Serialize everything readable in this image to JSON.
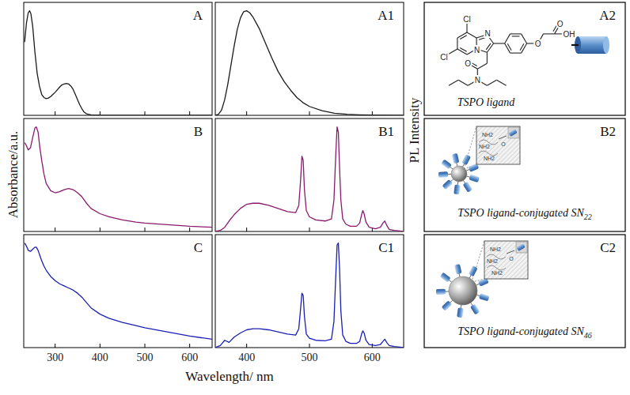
{
  "chart_data": [
    {
      "type": "line",
      "title": "A",
      "x": [
        232,
        236,
        240,
        243,
        246,
        250,
        255,
        260,
        265,
        270,
        275,
        280,
        285,
        290,
        295,
        300,
        305,
        310,
        315,
        320,
        325,
        330,
        335,
        340,
        345,
        350,
        355,
        360,
        365,
        370,
        380,
        400,
        450,
        500,
        550,
        600,
        650
      ],
      "series": [
        {
          "color": "#1a1a1a",
          "values": [
            0.7,
            0.88,
            0.98,
            1.0,
            0.97,
            0.85,
            0.6,
            0.4,
            0.28,
            0.2,
            0.17,
            0.16,
            0.165,
            0.18,
            0.2,
            0.22,
            0.245,
            0.27,
            0.29,
            0.3,
            0.305,
            0.3,
            0.28,
            0.25,
            0.2,
            0.15,
            0.1,
            0.06,
            0.03,
            0.015,
            0.005,
            0.002,
            0,
            0,
            0,
            0,
            0
          ]
        }
      ],
      "xlim": [
        230,
        650
      ],
      "ylim": [
        0,
        1.08
      ],
      "xticks": [
        300,
        400,
        500,
        600
      ],
      "tick_labels": false
    },
    {
      "type": "line",
      "title": "A1",
      "x": [
        350,
        355,
        360,
        365,
        370,
        375,
        380,
        385,
        390,
        395,
        400,
        405,
        410,
        420,
        430,
        440,
        450,
        460,
        470,
        480,
        490,
        500,
        520,
        540,
        560,
        580,
        600,
        650
      ],
      "series": [
        {
          "color": "#1a1a1a",
          "values": [
            0,
            0.01,
            0.05,
            0.15,
            0.3,
            0.48,
            0.66,
            0.82,
            0.93,
            0.99,
            1.0,
            0.98,
            0.94,
            0.83,
            0.69,
            0.55,
            0.42,
            0.32,
            0.24,
            0.17,
            0.12,
            0.085,
            0.045,
            0.02,
            0.01,
            0.005,
            0.002,
            0
          ]
        }
      ],
      "xlim": [
        350,
        650
      ],
      "ylim": [
        0,
        1.08
      ],
      "xticks": [
        400,
        500,
        600
      ],
      "tick_labels": false
    },
    {
      "type": "line",
      "title": "B",
      "x": [
        232,
        236,
        240,
        245,
        250,
        255,
        258,
        262,
        266,
        270,
        275,
        280,
        290,
        300,
        310,
        320,
        330,
        340,
        350,
        360,
        370,
        380,
        400,
        420,
        450,
        480,
        500,
        550,
        600,
        650
      ],
      "series": [
        {
          "color": "#8b1a6e",
          "values": [
            0.85,
            0.82,
            0.78,
            0.8,
            0.9,
            0.99,
            1.0,
            0.95,
            0.8,
            0.68,
            0.55,
            0.46,
            0.39,
            0.37,
            0.38,
            0.4,
            0.41,
            0.4,
            0.37,
            0.33,
            0.27,
            0.22,
            0.17,
            0.14,
            0.11,
            0.09,
            0.08,
            0.065,
            0.05,
            0.04
          ]
        }
      ],
      "xlim": [
        230,
        650
      ],
      "ylim": [
        0,
        1.08
      ],
      "xticks": [
        300,
        400,
        500,
        600
      ],
      "tick_labels": false
    },
    {
      "type": "line",
      "title": "B1",
      "x": [
        350,
        358,
        365,
        372,
        380,
        390,
        400,
        410,
        420,
        435,
        450,
        465,
        478,
        483,
        486,
        488,
        490,
        492,
        495,
        500,
        510,
        525,
        535,
        539,
        542,
        544,
        546,
        548,
        550,
        553,
        558,
        565,
        575,
        580,
        583,
        585,
        587,
        590,
        595,
        605,
        613,
        617,
        620,
        623,
        627,
        635,
        650
      ],
      "series": [
        {
          "color": "#8b1a6e",
          "values": [
            0,
            0.01,
            0.04,
            0.1,
            0.16,
            0.22,
            0.26,
            0.27,
            0.27,
            0.25,
            0.22,
            0.19,
            0.18,
            0.25,
            0.5,
            0.72,
            0.68,
            0.4,
            0.2,
            0.14,
            0.11,
            0.1,
            0.12,
            0.3,
            0.75,
            1.0,
            0.95,
            0.6,
            0.3,
            0.12,
            0.07,
            0.05,
            0.05,
            0.08,
            0.16,
            0.2,
            0.17,
            0.09,
            0.04,
            0.025,
            0.04,
            0.08,
            0.1,
            0.06,
            0.02,
            0.01,
            0
          ]
        }
      ],
      "xlim": [
        350,
        650
      ],
      "ylim": [
        0,
        1.08
      ],
      "xticks": [
        400,
        500,
        600
      ],
      "tick_labels": false
    },
    {
      "type": "line",
      "title": "C",
      "x": [
        232,
        236,
        240,
        245,
        250,
        255,
        258,
        262,
        266,
        270,
        275,
        280,
        290,
        300,
        310,
        320,
        330,
        340,
        350,
        360,
        370,
        380,
        400,
        420,
        450,
        480,
        500,
        550,
        600,
        650
      ],
      "series": [
        {
          "color": "#1a1fb5",
          "values": [
            1.0,
            0.97,
            0.93,
            0.92,
            0.94,
            0.96,
            0.96,
            0.93,
            0.88,
            0.83,
            0.78,
            0.74,
            0.68,
            0.64,
            0.61,
            0.59,
            0.57,
            0.55,
            0.52,
            0.48,
            0.43,
            0.38,
            0.32,
            0.28,
            0.24,
            0.21,
            0.19,
            0.15,
            0.11,
            0.08
          ]
        }
      ],
      "xlim": [
        230,
        650
      ],
      "ylim": [
        0,
        1.08
      ],
      "xticks": [
        300,
        400,
        500,
        600
      ],
      "tick_labels": "x"
    },
    {
      "type": "line",
      "title": "C1",
      "x": [
        350,
        358,
        365,
        372,
        380,
        390,
        400,
        410,
        420,
        435,
        450,
        465,
        478,
        483,
        486,
        488,
        490,
        492,
        495,
        500,
        510,
        525,
        535,
        539,
        542,
        544,
        546,
        548,
        550,
        553,
        558,
        565,
        575,
        580,
        583,
        585,
        587,
        590,
        595,
        605,
        613,
        617,
        620,
        623,
        627,
        635,
        650
      ],
      "series": [
        {
          "color": "#1a1fb5",
          "values": [
            0,
            0.02,
            0.07,
            0.05,
            0.1,
            0.14,
            0.17,
            0.18,
            0.18,
            0.17,
            0.15,
            0.13,
            0.12,
            0.18,
            0.38,
            0.52,
            0.5,
            0.3,
            0.13,
            0.09,
            0.07,
            0.065,
            0.08,
            0.25,
            0.7,
            0.98,
            1.0,
            0.75,
            0.35,
            0.12,
            0.06,
            0.04,
            0.04,
            0.06,
            0.13,
            0.16,
            0.14,
            0.07,
            0.03,
            0.02,
            0.03,
            0.06,
            0.08,
            0.05,
            0.02,
            0.01,
            0
          ]
        }
      ],
      "xlim": [
        350,
        650
      ],
      "ylim": [
        0,
        1.08
      ],
      "xticks": [
        400,
        500,
        600
      ],
      "tick_labels": "x"
    }
  ],
  "axis_labels": {
    "left": "Absorbance/a.u.",
    "right": "PL Intensity",
    "bottom": "Wavelength/ nm"
  },
  "schemes": [
    {
      "label": "A2",
      "caption": "TSPO ligand",
      "atoms": [
        "Cl",
        "Cl",
        "N",
        "N",
        "O",
        "O",
        "OH",
        "O",
        "N"
      ]
    },
    {
      "label": "B2",
      "caption": "TSPO ligand-conjugated SN",
      "caption_subscript": "22",
      "inset_labels": [
        "NH2",
        "NH2",
        "NH2",
        "O"
      ]
    },
    {
      "label": "C2",
      "caption": "TSPO ligand-conjugated SN",
      "caption_subscript": "46",
      "inset_labels": [
        "NH2",
        "NH2",
        "NH2",
        "O"
      ]
    }
  ]
}
